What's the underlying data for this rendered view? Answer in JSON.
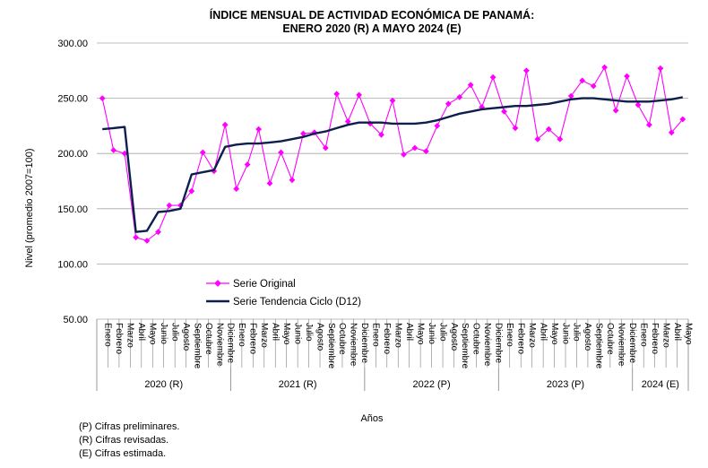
{
  "chart_data": {
    "type": "line",
    "title_line1": "ÍNDICE MENSUAL DE ACTIVIDAD ECONÓMICA DE PANAMÁ:",
    "title_line2": "ENERO 2020 (R) A MAYO 2024 (E)",
    "ylabel": "Nivel (promedio 2007=100)",
    "xlabel": "Años",
    "ylim": [
      50,
      300
    ],
    "yticks": [
      "50.00",
      "100.00",
      "150.00",
      "200.00",
      "250.00",
      "300.00"
    ],
    "grid": "horizontal",
    "legend_position": "center-left",
    "x": [
      "Enero",
      "Febrero",
      "Marzo",
      "Abril",
      "Mayo",
      "Junio",
      "Julio",
      "Agosto",
      "Septiembre",
      "Octubre",
      "Noviembre",
      "Diciembre",
      "Enero",
      "Febrero",
      "Marzo",
      "Abril",
      "Mayo",
      "Junio",
      "Julio",
      "Agosto",
      "Septiembre",
      "Octubre",
      "Noviembre",
      "Diciembre",
      "Enero",
      "Febrero",
      "Marzo",
      "Abril",
      "Mayo",
      "Junio",
      "Julio",
      "Agosto",
      "Septiembre",
      "Octubre",
      "Noviembre",
      "Diciembre",
      "Enero",
      "Febrero",
      "Marzo",
      "Abril",
      "Mayo",
      "Junio",
      "Julio",
      "Agosto",
      "Septiembre",
      "Octubre",
      "Noviembre",
      "Diciembre",
      "Enero",
      "Febrero",
      "Marzo",
      "Abril",
      "Mayo"
    ],
    "year_groups": [
      {
        "label": "2020 (R)",
        "count": 12
      },
      {
        "label": "2021 (R)",
        "count": 12
      },
      {
        "label": "2022 (P)",
        "count": 12
      },
      {
        "label": "2023 (P)",
        "count": 12
      },
      {
        "label": "2024 (E)",
        "count": 5
      }
    ],
    "series": [
      {
        "name": "Serie Original",
        "color": "#ff00ff",
        "marker": "diamond",
        "values": [
          250,
          203,
          200,
          124,
          121,
          129,
          153,
          153,
          166,
          201,
          184,
          226,
          168,
          190,
          222,
          173,
          201,
          176,
          218,
          219,
          205,
          254,
          229,
          253,
          227,
          217,
          248,
          199,
          205,
          202,
          225,
          245,
          251,
          262,
          242,
          269,
          238,
          223,
          275,
          213,
          222,
          213,
          252,
          266,
          261,
          278,
          239,
          270,
          244,
          226,
          277,
          219,
          231
        ]
      },
      {
        "name": "Serie Tendencia Ciclo (D12)",
        "color": "#0d1f4d",
        "marker": "none",
        "values": [
          222,
          223,
          224,
          129,
          130,
          147,
          148,
          150,
          181,
          183,
          185,
          206,
          208,
          209,
          209,
          210,
          211,
          213,
          215,
          218,
          220,
          223,
          226,
          228,
          228,
          228,
          227,
          227,
          227,
          228,
          230,
          233,
          236,
          238,
          240,
          241,
          242,
          243,
          243,
          244,
          245,
          247,
          249,
          250,
          250,
          249,
          248,
          247,
          247,
          247,
          248,
          249,
          251
        ]
      }
    ]
  },
  "notes": [
    "(P) Cifras preliminares.",
    "(R) Cifras revisadas.",
    "(E) Cifras estimada."
  ]
}
